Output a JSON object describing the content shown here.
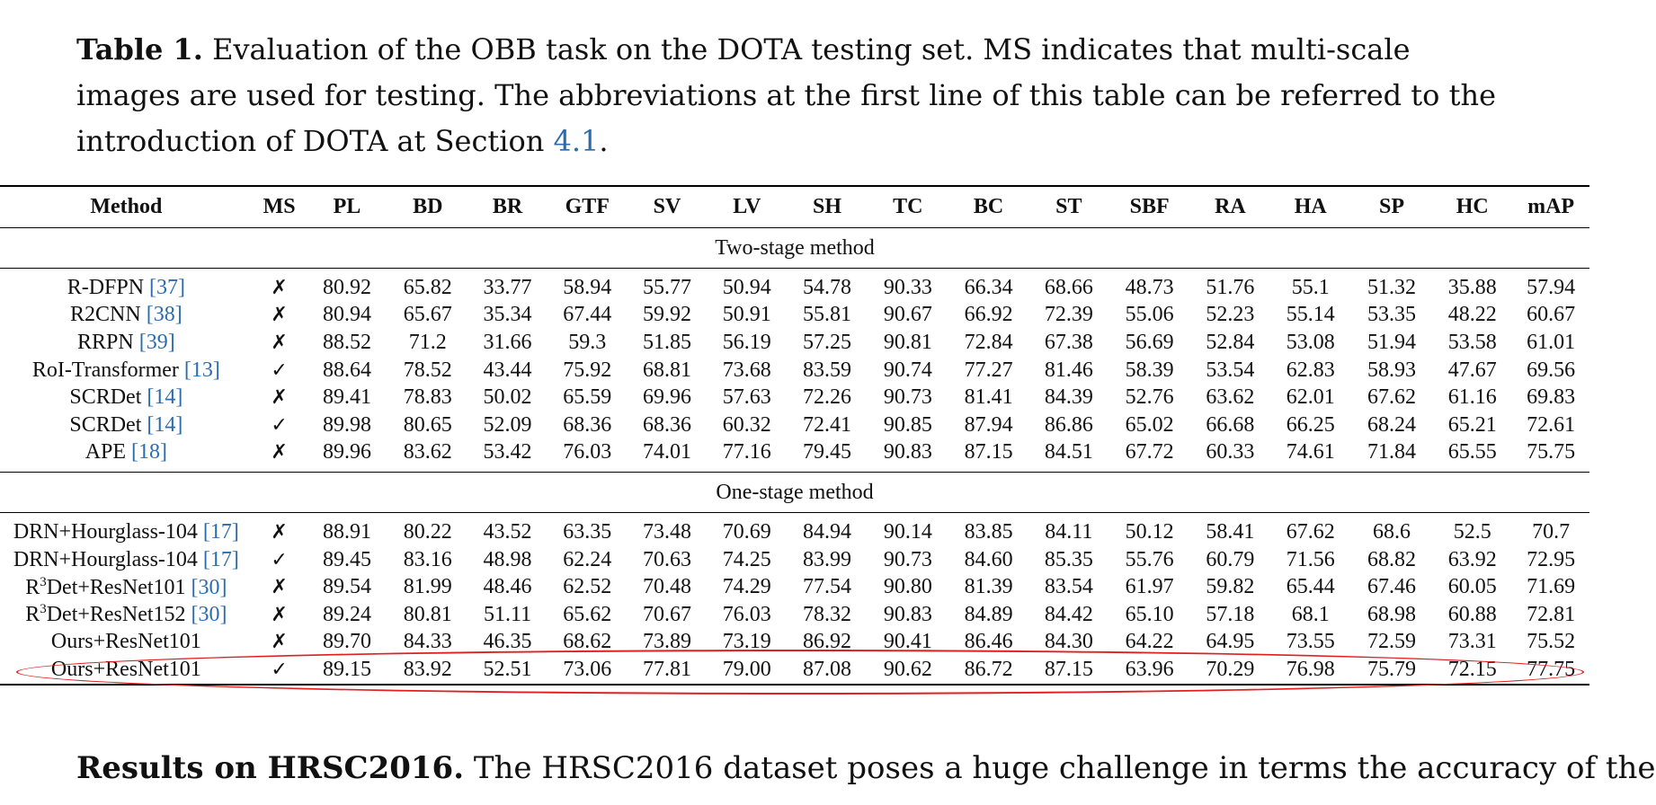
{
  "caption": {
    "label": "Table 1.",
    "text": " Evaluation of the OBB task on the DOTA testing set. MS indicates that multi-scale images are used for testing. The abbreviations at the first line of this table can be referred to the introduction of DOTA at Section ",
    "section_ref": "4.1",
    "end": "."
  },
  "table": {
    "headers": [
      "Method",
      "MS",
      "PL",
      "BD",
      "BR",
      "GTF",
      "SV",
      "LV",
      "SH",
      "TC",
      "BC",
      "ST",
      "SBF",
      "RA",
      "HA",
      "SP",
      "HC",
      "mAP"
    ],
    "sections": [
      {
        "title": "Two-stage method",
        "rows": [
          {
            "method": "R-DFPN ",
            "ref": "[37]",
            "ms": "✗",
            "values": [
              "80.92",
              "65.82",
              "33.77",
              "58.94",
              "55.77",
              "50.94",
              "54.78",
              "90.33",
              "66.34",
              "68.66",
              "48.73",
              "51.76",
              "55.1",
              "51.32",
              "35.88",
              "57.94"
            ]
          },
          {
            "method": "R2CNN ",
            "ref": "[38]",
            "ms": "✗",
            "values": [
              "80.94",
              "65.67",
              "35.34",
              "67.44",
              "59.92",
              "50.91",
              "55.81",
              "90.67",
              "66.92",
              "72.39",
              "55.06",
              "52.23",
              "55.14",
              "53.35",
              "48.22",
              "60.67"
            ]
          },
          {
            "method": "RRPN ",
            "ref": "[39]",
            "ms": "✗",
            "values": [
              "88.52",
              "71.2",
              "31.66",
              "59.3",
              "51.85",
              "56.19",
              "57.25",
              "90.81",
              "72.84",
              "67.38",
              "56.69",
              "52.84",
              "53.08",
              "51.94",
              "53.58",
              "61.01"
            ]
          },
          {
            "method": "RoI-Transformer ",
            "ref": "[13]",
            "ms": "✓",
            "values": [
              "88.64",
              "78.52",
              "43.44",
              "75.92",
              "68.81",
              "73.68",
              "83.59",
              "90.74",
              "77.27",
              "81.46",
              "58.39",
              "53.54",
              "62.83",
              "58.93",
              "47.67",
              "69.56"
            ]
          },
          {
            "method": "SCRDet ",
            "ref": "[14]",
            "ms": "✗",
            "values": [
              "89.41",
              "78.83",
              "50.02",
              "65.59",
              "69.96",
              "57.63",
              "72.26",
              "90.73",
              "81.41",
              "84.39",
              "52.76",
              "63.62",
              "62.01",
              "67.62",
              "61.16",
              "69.83"
            ]
          },
          {
            "method": "SCRDet ",
            "ref": "[14]",
            "ms": "✓",
            "values": [
              "89.98",
              "80.65",
              "52.09",
              "68.36",
              "68.36",
              "60.32",
              "72.41",
              "90.85",
              "87.94",
              "86.86",
              "65.02",
              "66.68",
              "66.25",
              "68.24",
              "65.21",
              "72.61"
            ]
          },
          {
            "method": "APE ",
            "ref": "[18]",
            "ms": "✗",
            "values": [
              "89.96",
              "83.62",
              "53.42",
              "76.03",
              "74.01",
              "77.16",
              "79.45",
              "90.83",
              "87.15",
              "84.51",
              "67.72",
              "60.33",
              "74.61",
              "71.84",
              "65.55",
              "75.75"
            ]
          }
        ]
      },
      {
        "title": "One-stage method",
        "rows": [
          {
            "method": "DRN+Hourglass-104 ",
            "ref": "[17]",
            "ms": "✗",
            "values": [
              "88.91",
              "80.22",
              "43.52",
              "63.35",
              "73.48",
              "70.69",
              "84.94",
              "90.14",
              "83.85",
              "84.11",
              "50.12",
              "58.41",
              "67.62",
              "68.6",
              "52.5",
              "70.7"
            ]
          },
          {
            "method": "DRN+Hourglass-104 ",
            "ref": "[17]",
            "ms": "✓",
            "values": [
              "89.45",
              "83.16",
              "48.98",
              "62.24",
              "70.63",
              "74.25",
              "83.99",
              "90.73",
              "84.60",
              "85.35",
              "55.76",
              "60.79",
              "71.56",
              "68.82",
              "63.92",
              "72.95"
            ]
          },
          {
            "method": "R",
            "sup": "3",
            "method_rest": "Det+ResNet101 ",
            "ref": "[30]",
            "ms": "✗",
            "values": [
              "89.54",
              "81.99",
              "48.46",
              "62.52",
              "70.48",
              "74.29",
              "77.54",
              "90.80",
              "81.39",
              "83.54",
              "61.97",
              "59.82",
              "65.44",
              "67.46",
              "60.05",
              "71.69"
            ]
          },
          {
            "method": "R",
            "sup": "3",
            "method_rest": "Det+ResNet152 ",
            "ref": "[30]",
            "ms": "✗",
            "values": [
              "89.24",
              "80.81",
              "51.11",
              "65.62",
              "70.67",
              "76.03",
              "78.32",
              "90.83",
              "84.89",
              "84.42",
              "65.10",
              "57.18",
              "68.1",
              "68.98",
              "60.88",
              "72.81"
            ]
          },
          {
            "method": "Ours+ResNet101",
            "ref": "",
            "ms": "✗",
            "values": [
              "89.70",
              "84.33",
              "46.35",
              "68.62",
              "73.89",
              "73.19",
              "86.92",
              "90.41",
              "86.46",
              "84.30",
              "64.22",
              "64.95",
              "73.55",
              "72.59",
              "73.31",
              "75.52"
            ]
          },
          {
            "method": "Ours+ResNet101",
            "ref": "",
            "ms": "✓",
            "values": [
              "89.15",
              "83.92",
              "52.51",
              "73.06",
              "77.81",
              "79.00",
              "87.08",
              "90.62",
              "86.72",
              "87.15",
              "63.96",
              "70.29",
              "76.98",
              "75.79",
              "72.15",
              "77.75"
            ]
          }
        ]
      }
    ]
  },
  "paragraph": {
    "lead": "Results on HRSC2016.",
    "text": " The HRSC2016 dataset poses a huge challenge in terms the accuracy of the"
  },
  "colors": {
    "highlight": "#e02020",
    "link": "#2b6cb0"
  }
}
